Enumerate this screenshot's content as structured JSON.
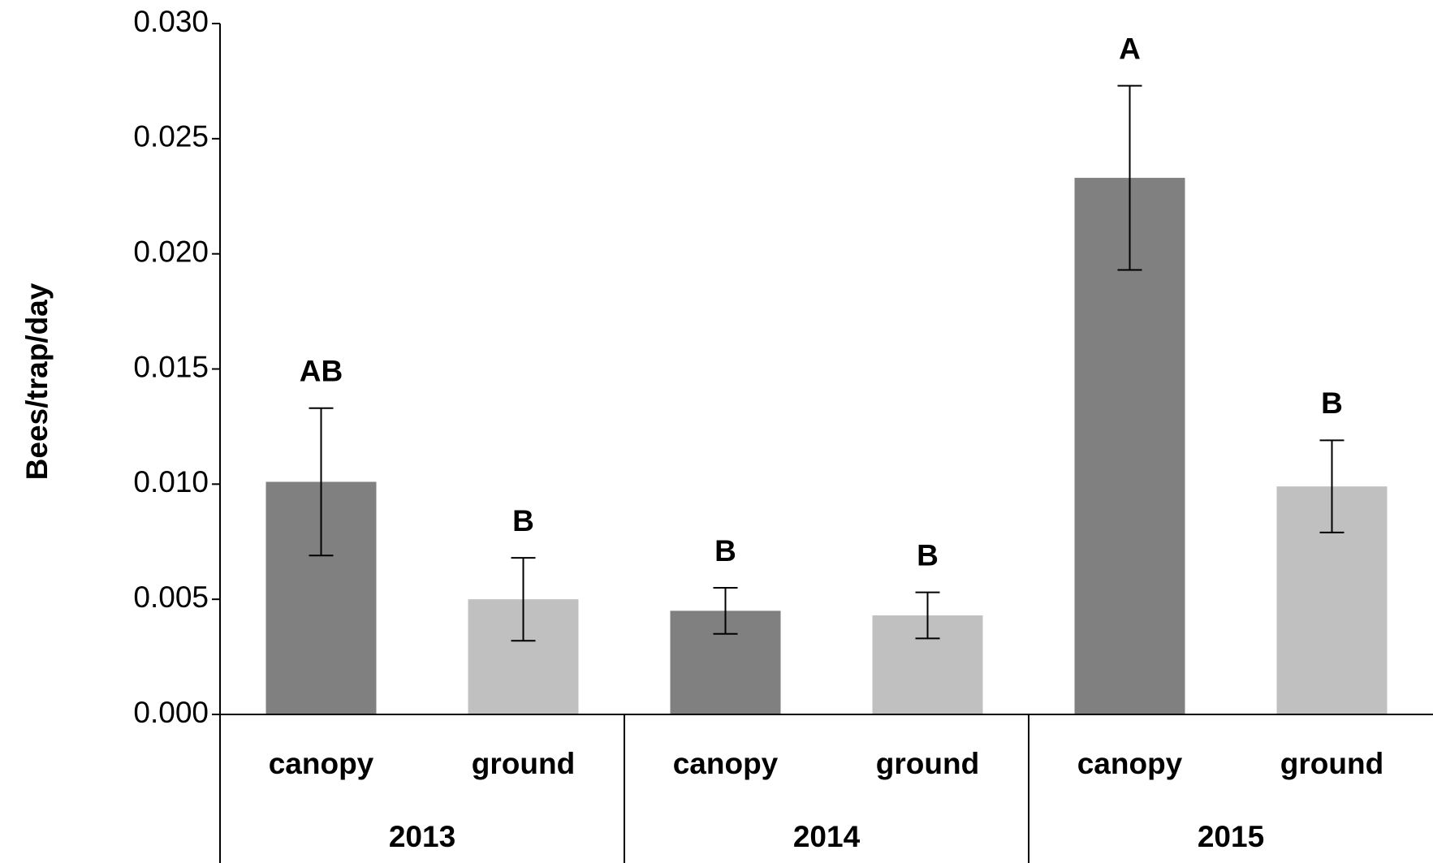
{
  "chart_data": {
    "type": "bar",
    "y_label": "Bees/trap/day",
    "categories": [
      "canopy",
      "ground",
      "canopy",
      "ground",
      "canopy",
      "ground"
    ],
    "groups": [
      "2013",
      "2014",
      "2015"
    ],
    "values": [
      0.0101,
      0.005,
      0.0045,
      0.0043,
      0.0233,
      0.0099
    ],
    "errors": [
      0.0032,
      0.0018,
      0.001,
      0.001,
      0.004,
      0.002
    ],
    "annotations": [
      "AB",
      "B",
      "B",
      "B",
      "A",
      "B"
    ],
    "colors": [
      "#808080",
      "#c0c0c0",
      "#808080",
      "#c0c0c0",
      "#808080",
      "#c0c0c0"
    ],
    "ylim": [
      0,
      0.03
    ],
    "yticks": [
      {
        "value": 0,
        "label": "0.000"
      },
      {
        "value": 0.005,
        "label": "0.005"
      },
      {
        "value": 0.01,
        "label": "0.010"
      },
      {
        "value": 0.015,
        "label": "0.015"
      },
      {
        "value": 0.02,
        "label": "0.020"
      },
      {
        "value": 0.025,
        "label": "0.025"
      },
      {
        "value": 0.03,
        "label": "0.030"
      }
    ],
    "grid": false
  }
}
